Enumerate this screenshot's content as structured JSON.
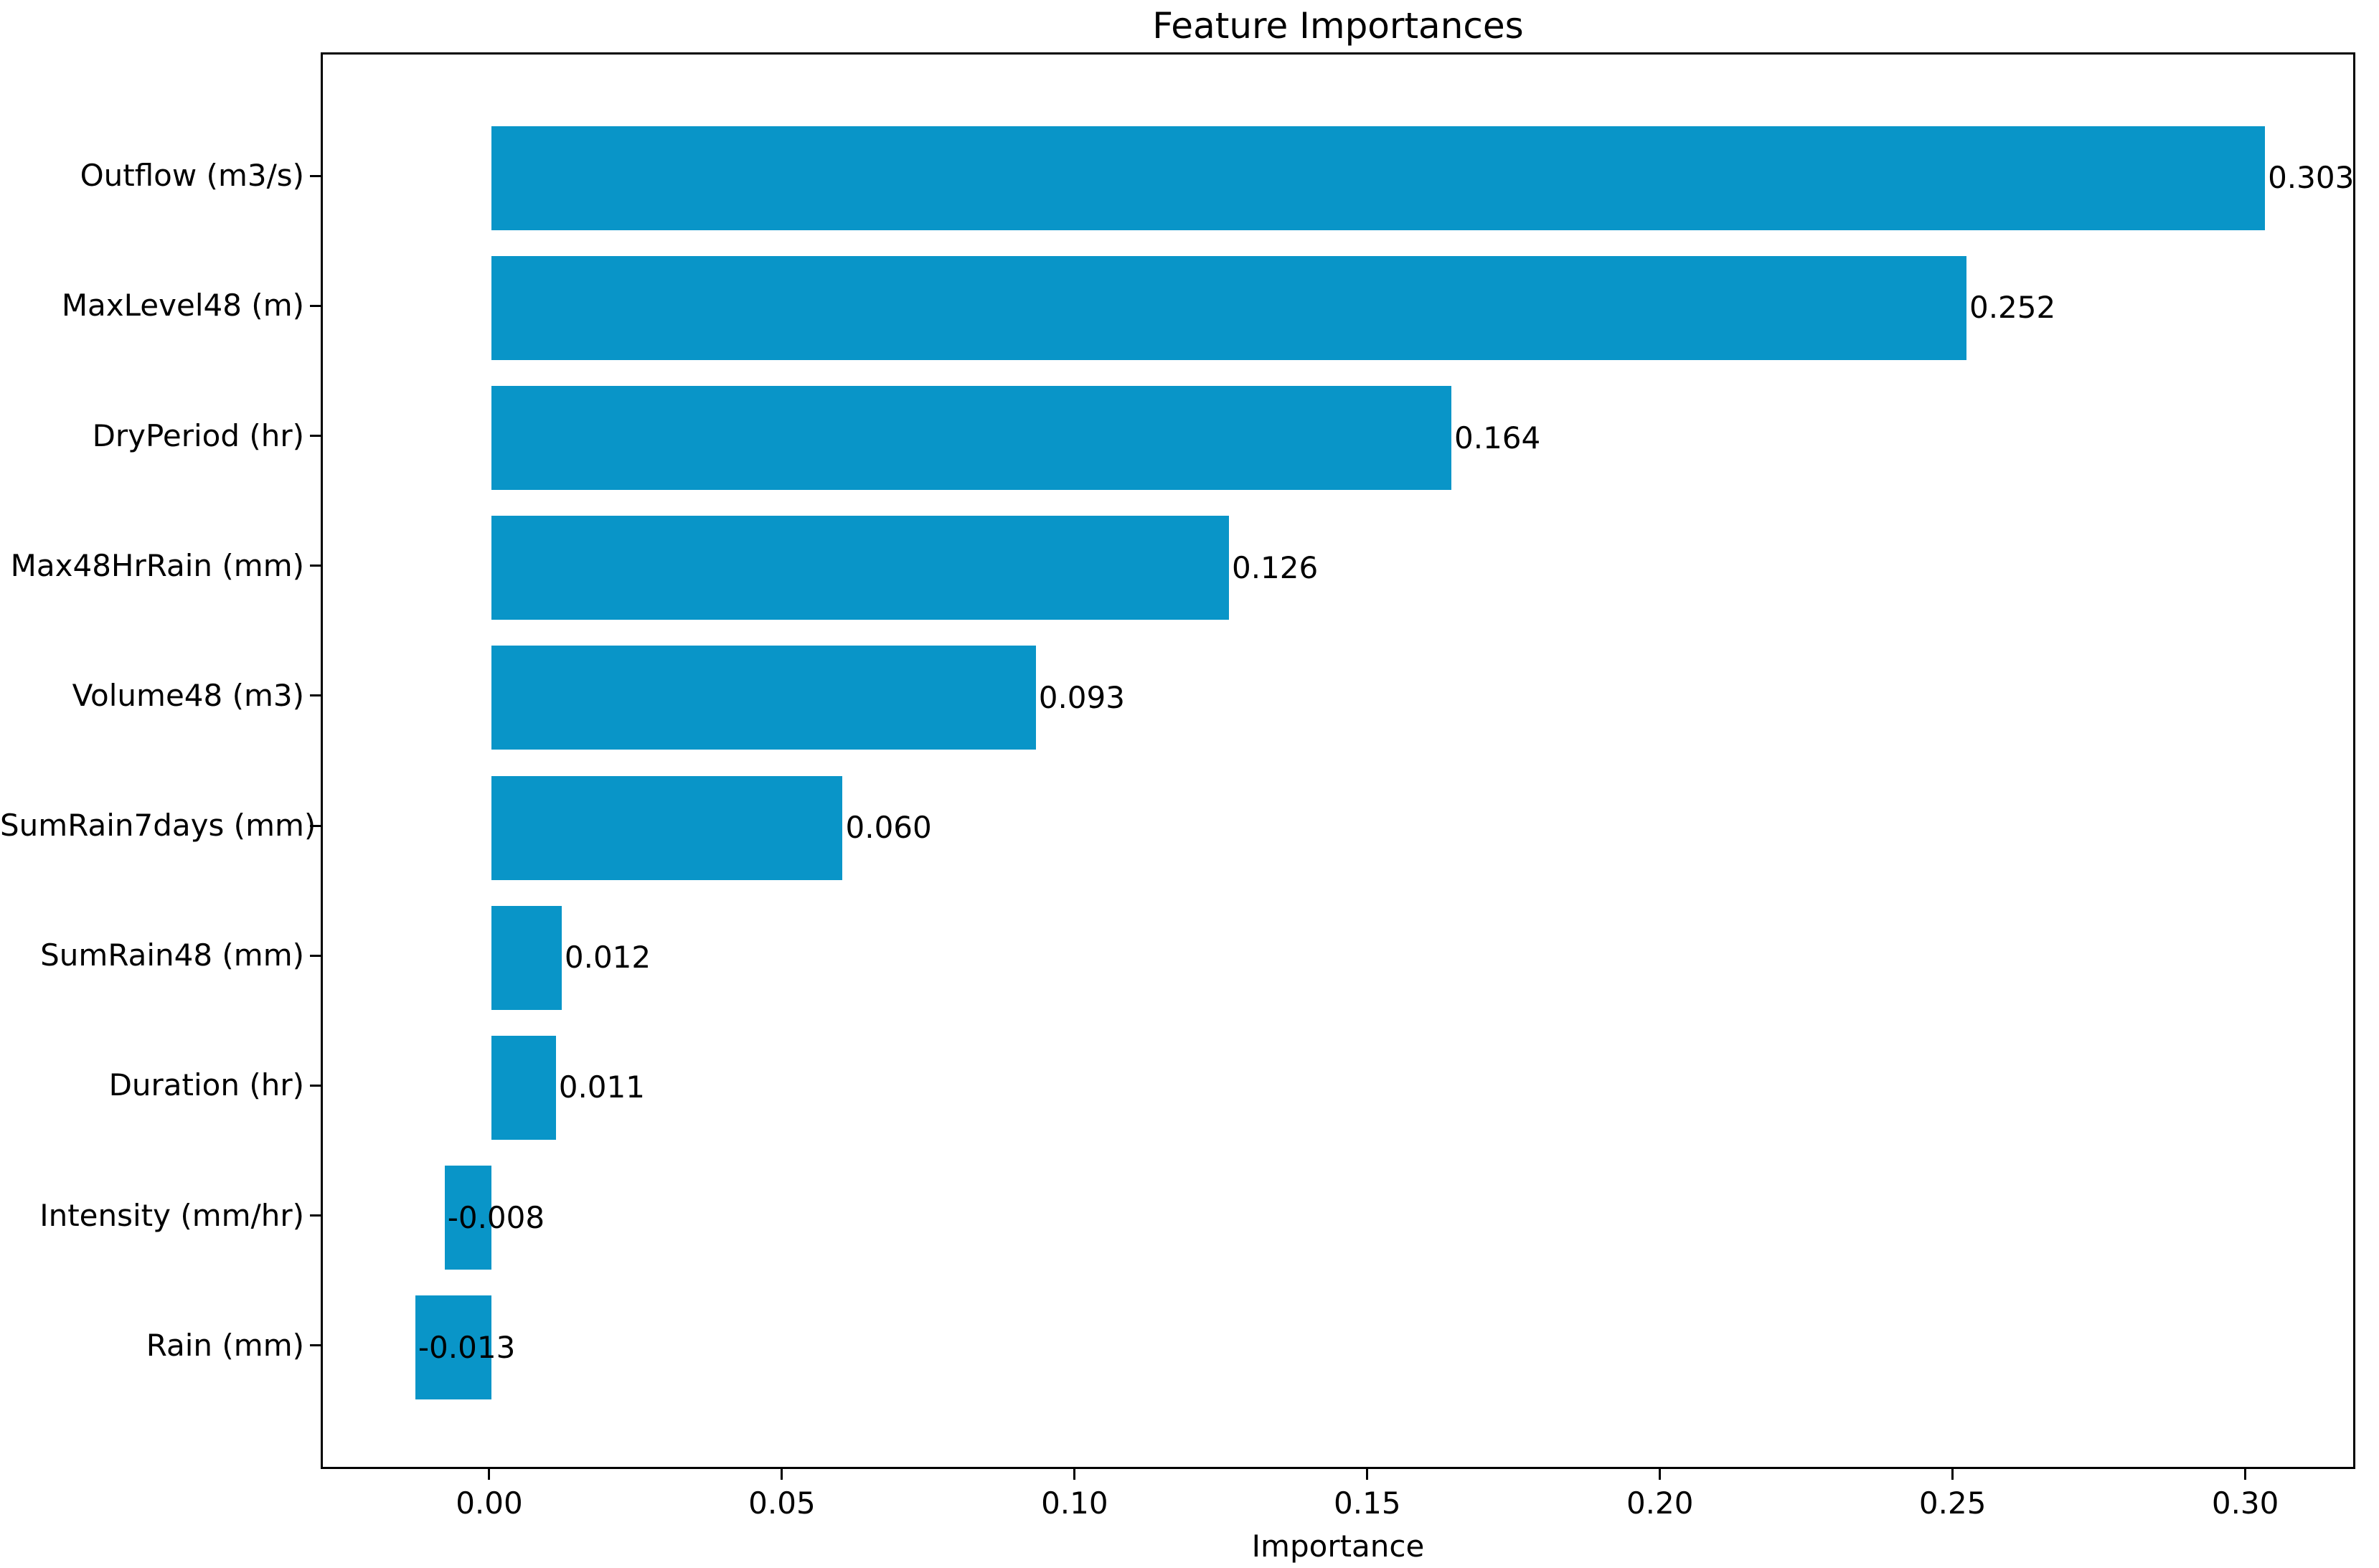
{
  "figure": {
    "title": "Feature Importances",
    "xlabel": "Importance"
  },
  "chart_data": {
    "type": "bar",
    "orientation": "horizontal",
    "title": "Feature Importances",
    "xlabel": "Importance",
    "ylabel": "",
    "categories": [
      "Outflow (m3/s)",
      "MaxLevel48 (m)",
      "DryPeriod (hr)",
      "Max48HrRain (mm)",
      "Volume48 (m3)",
      "SumRain7days (mm)",
      "SumRain48 (mm)",
      "Duration (hr)",
      "Intensity (mm/hr)",
      "Rain (mm)"
    ],
    "values": [
      0.303,
      0.252,
      0.164,
      0.126,
      0.093,
      0.06,
      0.012,
      0.011,
      -0.008,
      -0.013
    ],
    "bar_labels": [
      "0.303",
      "0.252",
      "0.164",
      "0.126",
      "0.093",
      "0.060",
      "0.012",
      "0.011",
      "-0.008",
      "-0.013"
    ],
    "x_ticks": [
      0.0,
      0.05,
      0.1,
      0.15,
      0.2,
      0.25,
      0.3
    ],
    "x_tick_labels": [
      "0.00",
      "0.05",
      "0.10",
      "0.15",
      "0.20",
      "0.25",
      "0.30"
    ],
    "xlim": [
      -0.0288,
      0.3188
    ],
    "bar_height_ratio": 0.8,
    "bar_color": "#0995c8",
    "axis_color": "#000000",
    "background_color": "#ffffff",
    "grid": false,
    "legend": null
  }
}
